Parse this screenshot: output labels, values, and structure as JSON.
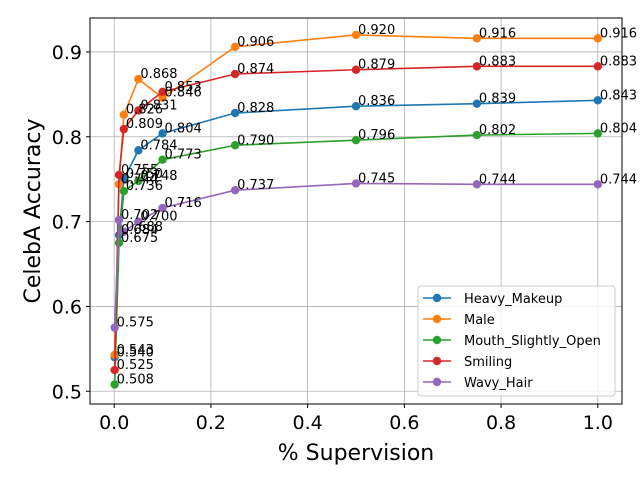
{
  "chart_data": {
    "type": "line",
    "xlabel": "% Supervision",
    "ylabel": "CelebA Accuracy",
    "xlim": [
      -0.05,
      1.05
    ],
    "ylim": [
      0.485,
      0.94
    ],
    "xticks": [
      0.0,
      0.2,
      0.4,
      0.6,
      0.8,
      1.0
    ],
    "xtick_labels": [
      "0.0",
      "0.2",
      "0.4",
      "0.6",
      "0.8",
      "1.0"
    ],
    "yticks": [
      0.5,
      0.6,
      0.7,
      0.8,
      0.9
    ],
    "ytick_labels": [
      "0.5",
      "0.6",
      "0.7",
      "0.8",
      "0.9"
    ],
    "grid": true,
    "legend_position": "lower-right",
    "x": [
      0.001,
      0.01,
      0.02,
      0.05,
      0.1,
      0.25,
      0.5,
      0.75,
      1.0
    ],
    "series": [
      {
        "name": "Heavy_Makeup",
        "color": "#1f77b4",
        "values": [
          0.54,
          0.684,
          0.75,
          0.784,
          0.804,
          0.828,
          0.836,
          0.839,
          0.843
        ],
        "labels": [
          "0.540",
          "0.684",
          "0.750",
          "0.784",
          "0.804",
          "0.828",
          "0.836",
          "0.839",
          "0.843"
        ]
      },
      {
        "name": "Male",
        "color": "#ff7f0e",
        "values": [
          0.543,
          0.744,
          0.826,
          0.868,
          0.846,
          0.906,
          0.92,
          0.916,
          0.916
        ],
        "labels": [
          "0.543",
          "0.744",
          "0.826",
          "0.868",
          "0.846",
          "0.906",
          "0.920",
          "0.916",
          "0.916"
        ]
      },
      {
        "name": "Mouth_Slightly_Open",
        "color": "#2ca02c",
        "values": [
          0.508,
          0.675,
          0.736,
          0.748,
          0.773,
          0.79,
          0.796,
          0.802,
          0.804
        ],
        "labels": [
          "0.508",
          "0.675",
          "0.736",
          "0.748",
          "0.773",
          "0.790",
          "0.796",
          "0.802",
          "0.804"
        ]
      },
      {
        "name": "Smiling",
        "color": "#d62728",
        "values": [
          0.525,
          0.755,
          0.809,
          0.831,
          0.853,
          0.874,
          0.879,
          0.883,
          0.883
        ],
        "labels": [
          "0.525",
          "0.755",
          "0.809",
          "0.831",
          "0.853",
          "0.874",
          "0.879",
          "0.883",
          "0.883"
        ]
      },
      {
        "name": "Wavy_Hair",
        "color": "#9467bd",
        "values": [
          0.575,
          0.702,
          0.688,
          0.7,
          0.716,
          0.737,
          0.745,
          0.744,
          0.744
        ],
        "labels": [
          "0.575",
          "0.702",
          "0.688",
          "0.700",
          "0.716",
          "0.737",
          "0.745",
          "0.744",
          "0.744"
        ]
      }
    ]
  }
}
